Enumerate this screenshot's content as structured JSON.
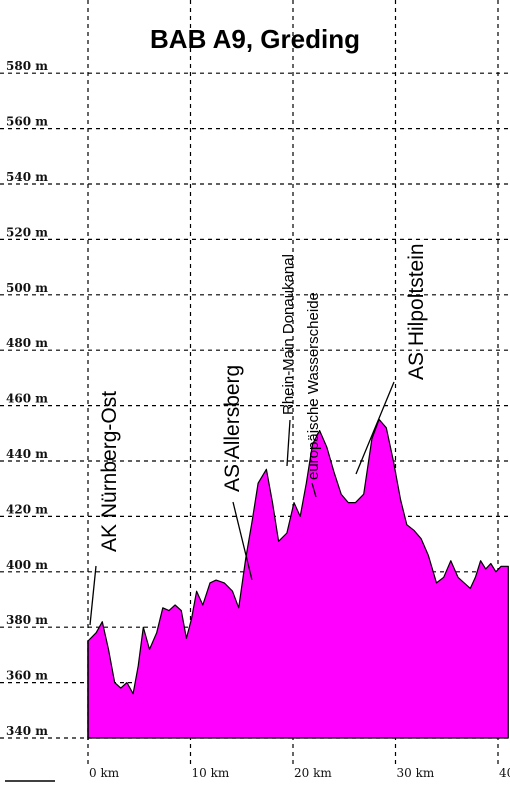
{
  "chart_data": {
    "type": "area",
    "title": "BAB A9, Greding",
    "xlabel": "",
    "ylabel": "",
    "xlim": [
      0,
      41
    ],
    "ylim": [
      340,
      590
    ],
    "y_ticks": [
      340,
      360,
      380,
      400,
      420,
      440,
      460,
      480,
      500,
      520,
      540,
      560,
      580
    ],
    "y_tick_labels": [
      "340 m",
      "360 m",
      "380 m",
      "400 m",
      "420 m",
      "440 m",
      "460 m",
      "480 m",
      "500 m",
      "520 m",
      "540 m",
      "560 m",
      "580 m"
    ],
    "x_ticks": [
      0,
      10,
      20,
      30,
      40
    ],
    "x_tick_labels": [
      "0 km",
      "10 km",
      "20 km",
      "30 km",
      "40"
    ],
    "grid": true,
    "fill_color": "#ff00ff",
    "series": [
      {
        "x": [
          0,
          0.8,
          1.4,
          2.0,
          2.6,
          3.2,
          3.8,
          4.4,
          4.9,
          5.4,
          6.0,
          6.7,
          7.3,
          7.9,
          8.5,
          9.1,
          9.6,
          10.1,
          10.6,
          11.2,
          11.9,
          12.5,
          13.3,
          14.1,
          14.7,
          15.4,
          16.0,
          16.6,
          17.4,
          18.0,
          18.6,
          19.4,
          20.1,
          20.7,
          21.3,
          21.9,
          22.6,
          23.3,
          24.0,
          24.7,
          25.4,
          26.1,
          26.9,
          27.7,
          28.4,
          29.1,
          29.8,
          30.5,
          31.1,
          31.8,
          32.5,
          33.2,
          34.0,
          34.7,
          35.4,
          36.1,
          36.7,
          37.3,
          37.8,
          38.3,
          38.8,
          39.3,
          39.8,
          40.3,
          41.0
        ],
        "y": [
          375,
          378,
          382,
          372,
          360,
          358,
          360,
          356,
          366,
          380,
          372,
          378,
          387,
          386,
          388,
          386,
          376,
          383,
          393,
          388,
          396,
          397,
          396,
          393,
          387,
          405,
          418,
          432,
          437,
          425,
          411,
          414,
          425,
          420,
          432,
          446,
          451,
          445,
          436,
          428,
          425,
          425,
          428,
          448,
          455,
          452,
          440,
          426,
          417,
          415,
          412,
          406,
          396,
          398,
          404,
          398,
          396,
          394,
          398,
          404,
          401,
          403,
          400,
          402,
          402
        ]
      }
    ],
    "annotations": [
      {
        "text": "AK Nürnberg-Ost",
        "x": 0.2,
        "y": 377
      },
      {
        "text": "AS Allersberg",
        "x": 15.9,
        "y": 390
      },
      {
        "text": "Rhein-Main Donaukanal",
        "x": 18.0,
        "y": 436
      },
      {
        "text": "europäische Wasserscheide",
        "x": 20.8,
        "y": 424
      },
      {
        "text": "AS Hilpoltstein",
        "x": 25.2,
        "y": 434
      }
    ]
  }
}
